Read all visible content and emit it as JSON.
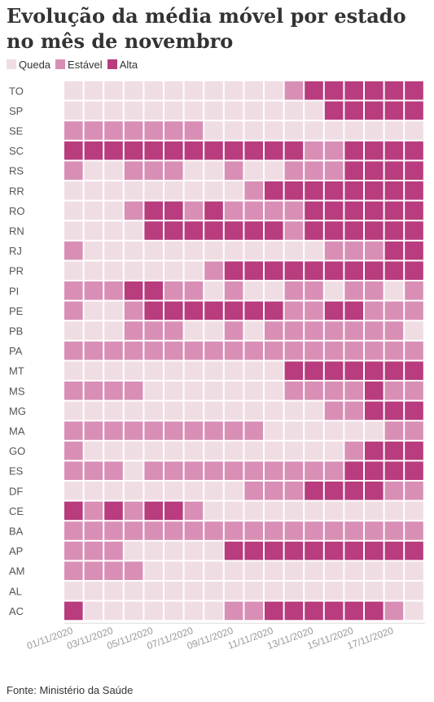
{
  "title": "Evolução da média móvel por estado no mês de novembro",
  "legend": [
    {
      "label": "Queda",
      "color": "#f0dde4"
    },
    {
      "label": "Estável",
      "color": "#d98fb5"
    },
    {
      "label": "Alta",
      "color": "#b83c7e"
    }
  ],
  "source": "Fonte: Ministério da Saúde",
  "chart_data": {
    "type": "heatmap",
    "x": [
      "01/11/2020",
      "02/11/2020",
      "03/11/2020",
      "04/11/2020",
      "05/11/2020",
      "06/11/2020",
      "07/11/2020",
      "08/11/2020",
      "09/11/2020",
      "10/11/2020",
      "11/11/2020",
      "12/11/2020",
      "13/11/2020",
      "14/11/2020",
      "15/11/2020",
      "16/11/2020",
      "17/11/2020",
      "18/11/2020"
    ],
    "x_tick_labels": [
      "01/11/2020",
      "03/11/2020",
      "05/11/2020",
      "07/11/2020",
      "09/11/2020",
      "11/11/2020",
      "13/11/2020",
      "15/11/2020",
      "17/11/2020"
    ],
    "y": [
      "TO",
      "SP",
      "SE",
      "SC",
      "RS",
      "RR",
      "RO",
      "RN",
      "RJ",
      "PR",
      "PI",
      "PE",
      "PB",
      "PA",
      "MT",
      "MS",
      "MG",
      "MA",
      "GO",
      "ES",
      "DF",
      "CE",
      "BA",
      "AP",
      "AM",
      "AL",
      "AC"
    ],
    "categories": [
      "Queda",
      "Estável",
      "Alta"
    ],
    "values": [
      [
        "Queda",
        "Queda",
        "Queda",
        "Queda",
        "Queda",
        "Queda",
        "Queda",
        "Queda",
        "Queda",
        "Queda",
        "Queda",
        "Estável",
        "Alta",
        "Alta",
        "Alta",
        "Alta",
        "Alta",
        "Alta"
      ],
      [
        "Queda",
        "Queda",
        "Queda",
        "Queda",
        "Queda",
        "Queda",
        "Queda",
        "Queda",
        "Queda",
        "Queda",
        "Queda",
        "Queda",
        "Queda",
        "Alta",
        "Alta",
        "Alta",
        "Alta",
        "Alta"
      ],
      [
        "Estável",
        "Estável",
        "Estável",
        "Estável",
        "Estável",
        "Estável",
        "Estável",
        "Queda",
        "Queda",
        "Queda",
        "Queda",
        "Queda",
        "Queda",
        "Queda",
        "Queda",
        "Queda",
        "Queda",
        "Queda"
      ],
      [
        "Alta",
        "Alta",
        "Alta",
        "Alta",
        "Alta",
        "Alta",
        "Alta",
        "Alta",
        "Alta",
        "Alta",
        "Alta",
        "Alta",
        "Estável",
        "Estável",
        "Alta",
        "Alta",
        "Alta",
        "Alta"
      ],
      [
        "Estável",
        "Queda",
        "Queda",
        "Estável",
        "Estável",
        "Estável",
        "Queda",
        "Queda",
        "Estável",
        "Queda",
        "Queda",
        "Estável",
        "Estável",
        "Estável",
        "Alta",
        "Alta",
        "Alta",
        "Alta"
      ],
      [
        "Queda",
        "Queda",
        "Queda",
        "Queda",
        "Queda",
        "Queda",
        "Queda",
        "Queda",
        "Queda",
        "Estável",
        "Alta",
        "Alta",
        "Alta",
        "Alta",
        "Alta",
        "Alta",
        "Alta",
        "Alta"
      ],
      [
        "Queda",
        "Queda",
        "Queda",
        "Estável",
        "Alta",
        "Alta",
        "Estável",
        "Alta",
        "Estável",
        "Estável",
        "Estável",
        "Estável",
        "Alta",
        "Alta",
        "Alta",
        "Alta",
        "Alta",
        "Alta"
      ],
      [
        "Queda",
        "Queda",
        "Queda",
        "Queda",
        "Alta",
        "Alta",
        "Alta",
        "Alta",
        "Alta",
        "Alta",
        "Alta",
        "Estável",
        "Alta",
        "Alta",
        "Alta",
        "Alta",
        "Alta",
        "Alta"
      ],
      [
        "Estável",
        "Queda",
        "Queda",
        "Queda",
        "Queda",
        "Queda",
        "Queda",
        "Queda",
        "Queda",
        "Queda",
        "Queda",
        "Queda",
        "Queda",
        "Estável",
        "Estável",
        "Estável",
        "Alta",
        "Alta"
      ],
      [
        "Queda",
        "Queda",
        "Queda",
        "Queda",
        "Queda",
        "Queda",
        "Queda",
        "Estável",
        "Alta",
        "Alta",
        "Alta",
        "Alta",
        "Alta",
        "Alta",
        "Alta",
        "Alta",
        "Alta",
        "Alta"
      ],
      [
        "Estável",
        "Estável",
        "Estável",
        "Alta",
        "Alta",
        "Estável",
        "Estável",
        "Queda",
        "Estável",
        "Queda",
        "Queda",
        "Estável",
        "Estável",
        "Queda",
        "Estável",
        "Estável",
        "Queda",
        "Estável"
      ],
      [
        "Estável",
        "Queda",
        "Queda",
        "Estável",
        "Alta",
        "Alta",
        "Alta",
        "Alta",
        "Alta",
        "Alta",
        "Alta",
        "Estável",
        "Estável",
        "Alta",
        "Alta",
        "Estável",
        "Estável",
        "Estável"
      ],
      [
        "Queda",
        "Queda",
        "Queda",
        "Estável",
        "Estável",
        "Estável",
        "Queda",
        "Queda",
        "Estável",
        "Queda",
        "Estável",
        "Estável",
        "Estável",
        "Estável",
        "Estável",
        "Estável",
        "Estável",
        "Queda"
      ],
      [
        "Estável",
        "Estável",
        "Estável",
        "Estável",
        "Estável",
        "Estável",
        "Estável",
        "Estável",
        "Estável",
        "Estável",
        "Estável",
        "Estável",
        "Estável",
        "Estável",
        "Estável",
        "Estável",
        "Estável",
        "Estável"
      ],
      [
        "Queda",
        "Queda",
        "Queda",
        "Queda",
        "Queda",
        "Queda",
        "Queda",
        "Queda",
        "Queda",
        "Queda",
        "Queda",
        "Alta",
        "Alta",
        "Alta",
        "Alta",
        "Alta",
        "Alta",
        "Alta"
      ],
      [
        "Estável",
        "Estável",
        "Estável",
        "Estável",
        "Queda",
        "Queda",
        "Queda",
        "Queda",
        "Queda",
        "Queda",
        "Queda",
        "Estável",
        "Estável",
        "Estável",
        "Estável",
        "Alta",
        "Estável",
        "Estável"
      ],
      [
        "Queda",
        "Queda",
        "Queda",
        "Queda",
        "Queda",
        "Queda",
        "Queda",
        "Queda",
        "Queda",
        "Queda",
        "Queda",
        "Queda",
        "Queda",
        "Estável",
        "Estável",
        "Alta",
        "Alta",
        "Alta"
      ],
      [
        "Estável",
        "Estável",
        "Estável",
        "Estável",
        "Estável",
        "Estável",
        "Estável",
        "Estável",
        "Estável",
        "Estável",
        "Queda",
        "Queda",
        "Queda",
        "Queda",
        "Queda",
        "Queda",
        "Estável",
        "Estável"
      ],
      [
        "Estável",
        "Queda",
        "Queda",
        "Queda",
        "Queda",
        "Queda",
        "Queda",
        "Queda",
        "Queda",
        "Queda",
        "Queda",
        "Queda",
        "Queda",
        "Queda",
        "Estável",
        "Alta",
        "Alta",
        "Alta"
      ],
      [
        "Estável",
        "Estável",
        "Estável",
        "Queda",
        "Estável",
        "Estável",
        "Estável",
        "Estável",
        "Estável",
        "Estável",
        "Estável",
        "Estável",
        "Estável",
        "Estável",
        "Alta",
        "Alta",
        "Alta",
        "Alta"
      ],
      [
        "Queda",
        "Queda",
        "Queda",
        "Queda",
        "Queda",
        "Queda",
        "Queda",
        "Queda",
        "Queda",
        "Estável",
        "Estável",
        "Estável",
        "Alta",
        "Alta",
        "Alta",
        "Alta",
        "Estável",
        "Estável"
      ],
      [
        "Alta",
        "Estável",
        "Alta",
        "Estável",
        "Alta",
        "Alta",
        "Estável",
        "Queda",
        "Queda",
        "Queda",
        "Queda",
        "Queda",
        "Queda",
        "Queda",
        "Queda",
        "Queda",
        "Queda",
        "Queda"
      ],
      [
        "Estável",
        "Estável",
        "Estável",
        "Estável",
        "Estável",
        "Estável",
        "Estável",
        "Estável",
        "Estável",
        "Estável",
        "Estável",
        "Estável",
        "Estável",
        "Estável",
        "Estável",
        "Estável",
        "Estável",
        "Estável"
      ],
      [
        "Estável",
        "Estável",
        "Estável",
        "Queda",
        "Queda",
        "Queda",
        "Queda",
        "Queda",
        "Alta",
        "Alta",
        "Alta",
        "Alta",
        "Alta",
        "Alta",
        "Alta",
        "Alta",
        "Alta",
        "Alta"
      ],
      [
        "Estável",
        "Estável",
        "Estável",
        "Estável",
        "Queda",
        "Queda",
        "Queda",
        "Queda",
        "Queda",
        "Queda",
        "Queda",
        "Queda",
        "Queda",
        "Queda",
        "Queda",
        "Queda",
        "Queda",
        "Queda"
      ],
      [
        "Queda",
        "Queda",
        "Queda",
        "Queda",
        "Queda",
        "Queda",
        "Queda",
        "Queda",
        "Queda",
        "Queda",
        "Queda",
        "Queda",
        "Queda",
        "Queda",
        "Queda",
        "Queda",
        "Queda",
        "Queda"
      ],
      [
        "Alta",
        "Queda",
        "Queda",
        "Queda",
        "Queda",
        "Queda",
        "Queda",
        "Queda",
        "Estável",
        "Estável",
        "Alta",
        "Alta",
        "Alta",
        "Alta",
        "Alta",
        "Alta",
        "Estável",
        "Queda"
      ]
    ],
    "legend_position": "top-left",
    "grid": false
  }
}
